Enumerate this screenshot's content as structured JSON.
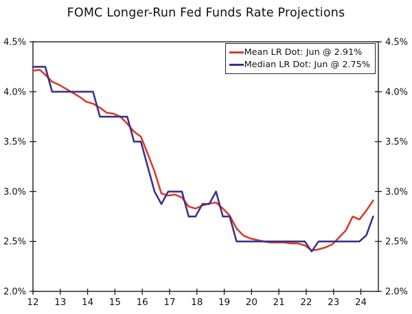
{
  "page": {
    "title": "FOMC Longer-Run Fed Funds Rate Projections"
  },
  "colors": {
    "mean_line": "#D93B2A",
    "median_line": "#3A3189",
    "axis": "#1A1A1A",
    "background": "#FFFFFF"
  },
  "chart_data": {
    "type": "line",
    "title": "FOMC Longer-Run Fed Funds Rate Projections",
    "xlabel": "",
    "ylabel": "",
    "xlim": [
      2012,
      2024.64
    ],
    "ylim": [
      2.0,
      4.5
    ],
    "grid": false,
    "legend_position": "top-right",
    "y_axis_sides": "both",
    "x_tick_values": [
      2012,
      2013,
      2014,
      2015,
      2016,
      2017,
      2018,
      2019,
      2020,
      2021,
      2022,
      2023,
      2024
    ],
    "x_tick_labels": [
      "12",
      "13",
      "14",
      "15",
      "16",
      "17",
      "18",
      "19",
      "20",
      "21",
      "22",
      "23",
      "24"
    ],
    "y_tick_values": [
      2.0,
      2.5,
      3.0,
      3.5,
      4.0,
      4.5
    ],
    "y_tick_labels": [
      "2.0%",
      "2.5%",
      "3.0%",
      "3.5%",
      "4.0%",
      "4.5%"
    ],
    "x": [
      2012.0,
      2012.25,
      2012.45,
      2012.7,
      2012.95,
      2013.2,
      2013.45,
      2013.7,
      2013.95,
      2014.2,
      2014.45,
      2014.7,
      2014.95,
      2015.2,
      2015.45,
      2015.7,
      2015.95,
      2016.2,
      2016.45,
      2016.7,
      2016.95,
      2017.2,
      2017.45,
      2017.7,
      2017.95,
      2018.2,
      2018.45,
      2018.7,
      2018.95,
      2019.2,
      2019.45,
      2019.7,
      2019.95,
      2020.45,
      2020.7,
      2020.95,
      2021.2,
      2021.45,
      2021.7,
      2021.95,
      2022.2,
      2022.45,
      2022.7,
      2022.95,
      2023.2,
      2023.45,
      2023.7,
      2023.95,
      2024.2,
      2024.45
    ],
    "series": [
      {
        "name": "Mean LR Dot: Jun @ 2.91%",
        "color": "#D93B2A",
        "values": [
          4.21,
          4.22,
          4.17,
          4.1,
          4.07,
          4.03,
          3.99,
          3.95,
          3.9,
          3.88,
          3.84,
          3.79,
          3.78,
          3.75,
          3.68,
          3.6,
          3.55,
          3.38,
          3.2,
          2.98,
          2.96,
          2.97,
          2.94,
          2.85,
          2.83,
          2.86,
          2.88,
          2.89,
          2.83,
          2.76,
          2.63,
          2.56,
          2.53,
          2.5,
          2.49,
          2.49,
          2.49,
          2.48,
          2.48,
          2.46,
          2.41,
          2.42,
          2.44,
          2.47,
          2.54,
          2.61,
          2.75,
          2.72,
          2.81,
          2.91
        ]
      },
      {
        "name": "Median LR Dot: Jun @ 2.75%",
        "color": "#3A3189",
        "values": [
          4.25,
          4.25,
          4.25,
          4.0,
          4.0,
          4.0,
          4.0,
          4.0,
          4.0,
          4.0,
          3.75,
          3.75,
          3.75,
          3.75,
          3.75,
          3.5,
          3.5,
          3.25,
          3.0,
          2.875,
          3.0,
          3.0,
          3.0,
          2.75,
          2.75,
          2.875,
          2.875,
          3.0,
          2.75,
          2.75,
          2.5,
          2.5,
          2.5,
          2.5,
          2.5,
          2.5,
          2.5,
          2.5,
          2.5,
          2.5,
          2.4,
          2.5,
          2.5,
          2.5,
          2.5,
          2.5,
          2.5,
          2.5,
          2.5625,
          2.75
        ]
      }
    ]
  }
}
